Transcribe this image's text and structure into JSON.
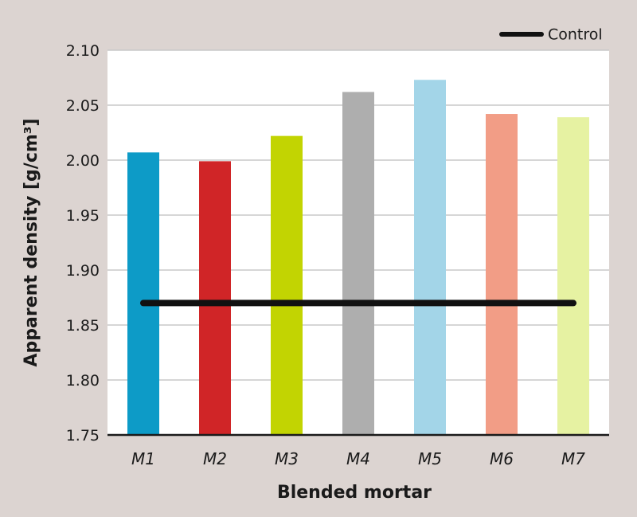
{
  "chart_data": {
    "type": "bar",
    "title": "",
    "xlabel": "Blended mortar",
    "ylabel": "Apparent density [g/cm³]",
    "categories": [
      "M1",
      "M2",
      "M3",
      "M4",
      "M5",
      "M6",
      "M7"
    ],
    "values": [
      2.007,
      1.999,
      2.022,
      2.062,
      2.073,
      2.042,
      2.039
    ],
    "bar_colors": [
      "#0d9bc7",
      "#d02527",
      "#c2d402",
      "#aeaeae",
      "#a3d5e8",
      "#f29d86",
      "#e6f2a2"
    ],
    "ylim": [
      1.75,
      2.1
    ],
    "yticks": [
      "1.75",
      "1.80",
      "1.85",
      "1.90",
      "1.95",
      "2.00",
      "2.05",
      "2.10"
    ],
    "reference_line": {
      "name": "Control",
      "value": 1.87,
      "color": "#111111"
    },
    "legend": {
      "position": "top-right",
      "entries": [
        "Control"
      ]
    },
    "grid": true,
    "plot_background": "#ffffff",
    "page_background": "#dcd4d1"
  }
}
